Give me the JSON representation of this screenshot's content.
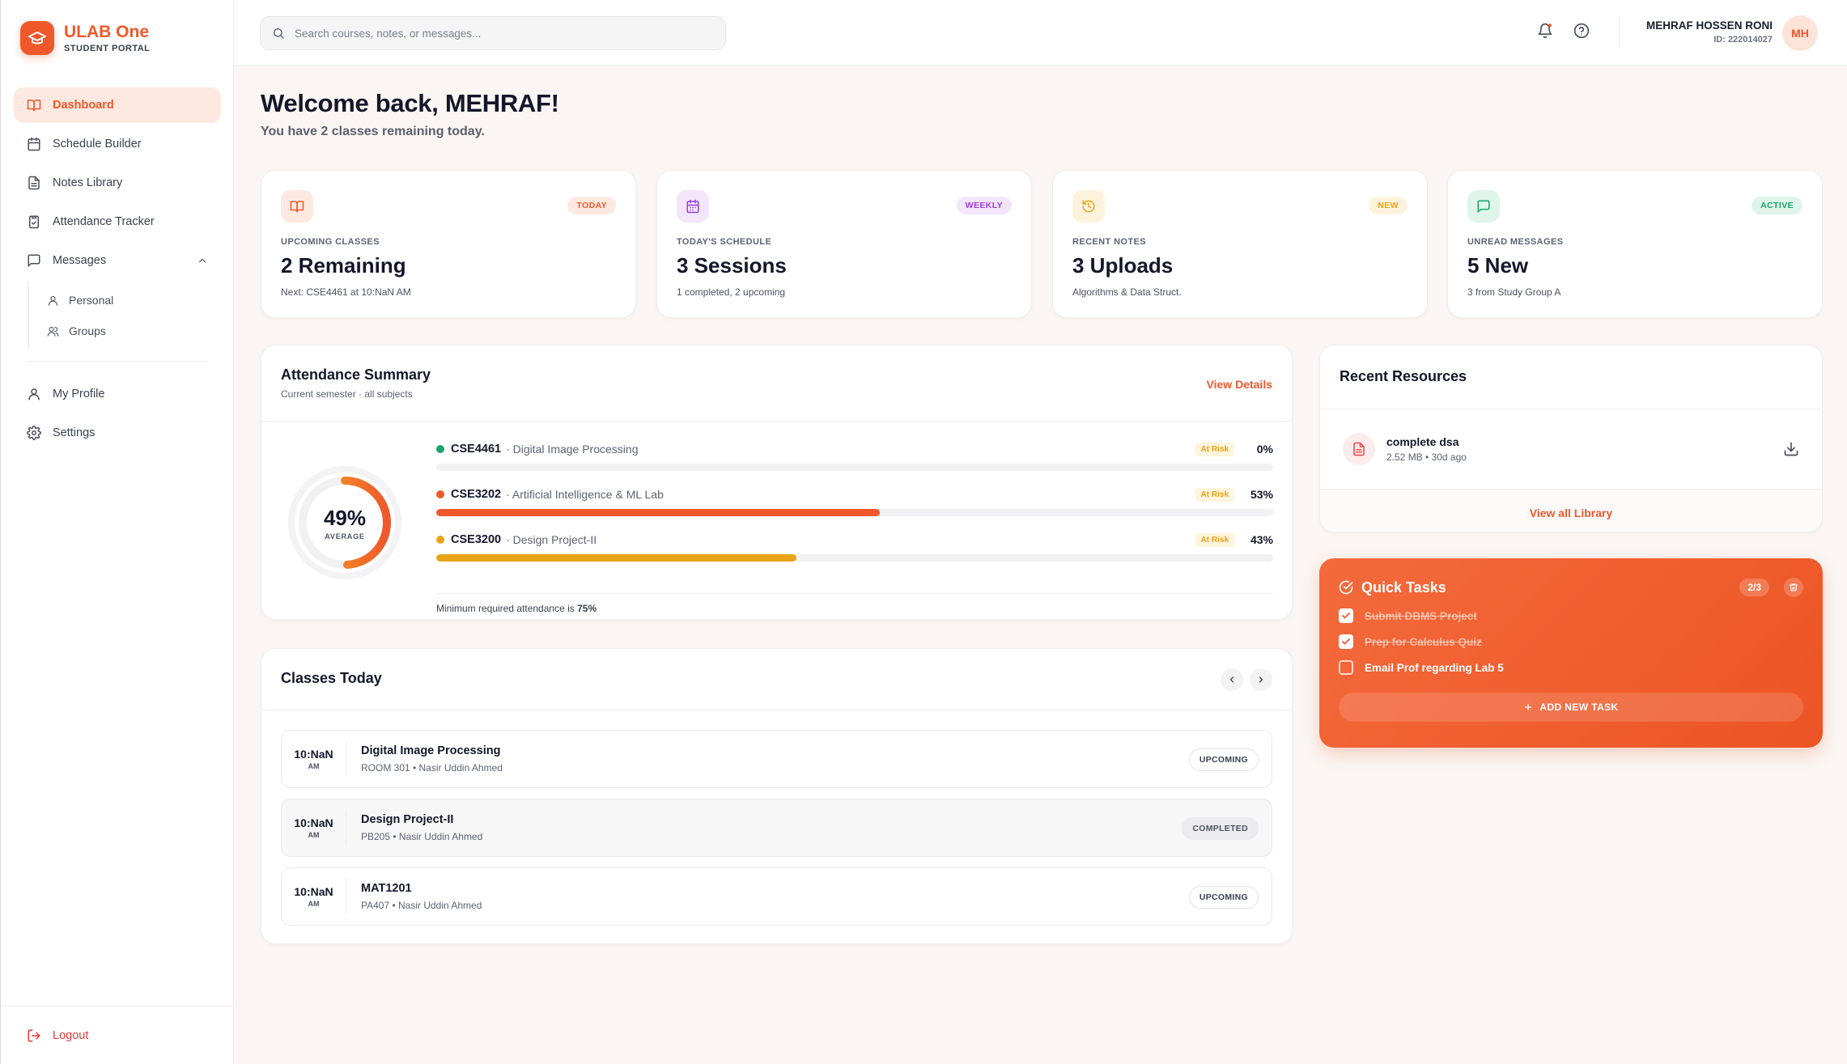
{
  "brand": {
    "name": "ULAB One",
    "subtitle": "STUDENT PORTAL"
  },
  "sidebar": {
    "items": [
      {
        "label": "Dashboard",
        "icon": "book-open-icon",
        "active": true
      },
      {
        "label": "Schedule Builder",
        "icon": "calendar-icon"
      },
      {
        "label": "Notes Library",
        "icon": "file-text-icon"
      },
      {
        "label": "Attendance Tracker",
        "icon": "clipboard-check-icon"
      },
      {
        "label": "Messages",
        "icon": "message-icon",
        "expanded": true
      }
    ],
    "messages_sub": [
      {
        "label": "Personal",
        "icon": "user-icon"
      },
      {
        "label": "Groups",
        "icon": "users-icon"
      }
    ],
    "bottom_items": [
      {
        "label": "My Profile",
        "icon": "user-icon"
      },
      {
        "label": "Settings",
        "icon": "gear-icon"
      }
    ],
    "logout_label": "Logout"
  },
  "header": {
    "search_placeholder": "Search courses, notes, or messages...",
    "user_name": "MEHRAF HOSSEN RONI",
    "user_id": "ID: 222014027",
    "avatar_initials": "MH"
  },
  "welcome": {
    "title": "Welcome back, MEHRAF!",
    "subtitle": "You have 2 classes remaining today."
  },
  "stats": [
    {
      "icon": "book-open-icon",
      "badge": "TODAY",
      "label": "UPCOMING CLASSES",
      "value": "2 Remaining",
      "sub": "Next: CSE4461 at 10:NaN AM",
      "color": "#f0582b"
    },
    {
      "icon": "calendar-icon",
      "badge": "WEEKLY",
      "label": "TODAY'S SCHEDULE",
      "value": "3 Sessions",
      "sub": "1 completed, 2 upcoming",
      "color": "#9b3fd6"
    },
    {
      "icon": "history-icon",
      "badge": "NEW",
      "label": "RECENT NOTES",
      "value": "3 Uploads",
      "sub": "Algorithms & Data Struct.",
      "color": "#e8a317"
    },
    {
      "icon": "message-icon",
      "badge": "ACTIVE",
      "label": "UNREAD MESSAGES",
      "value": "5 New",
      "sub": "3 from Study Group A",
      "color": "#1aa56a"
    }
  ],
  "attendance": {
    "title": "Attendance Summary",
    "subtitle": "Current semester · all subjects",
    "view_details": "View Details",
    "average": "49%",
    "average_fraction": 0.49,
    "average_label": "AVERAGE",
    "subjects": [
      {
        "code": "CSE4461",
        "name": "· Digital Image Processing",
        "status": "At Risk",
        "percent_label": "0%",
        "percent": 0,
        "color": "#1aa56a"
      },
      {
        "code": "CSE3202",
        "name": "· Artificial Intelligence & ML Lab",
        "status": "At Risk",
        "percent_label": "53%",
        "percent": 53,
        "color": "#f0582b"
      },
      {
        "code": "CSE3200",
        "name": "· Design Project-II",
        "status": "At Risk",
        "percent_label": "43%",
        "percent": 43,
        "color": "#e8a317"
      }
    ],
    "min_note": "Minimum required attendance is ",
    "min_value": "75%"
  },
  "classes": {
    "title": "Classes Today",
    "items": [
      {
        "time": "10:NaN",
        "ampm": "AM",
        "name": "Digital Image Processing",
        "meta": "ROOM 301 • Nasir Uddin Ahmed",
        "status": "UPCOMING"
      },
      {
        "time": "10:NaN",
        "ampm": "AM",
        "name": "Design Project-II",
        "meta": "PB205 • Nasir Uddin Ahmed",
        "status": "COMPLETED"
      },
      {
        "time": "10:NaN",
        "ampm": "AM",
        "name": "MAT1201",
        "meta": "PA407 • Nasir Uddin Ahmed",
        "status": "UPCOMING"
      }
    ]
  },
  "resources": {
    "title": "Recent Resources",
    "items": [
      {
        "name": "complete dsa",
        "meta": "2.52 MB • 30d ago"
      }
    ],
    "view_all": "View all Library"
  },
  "tasks": {
    "title": "Quick Tasks",
    "count": "2/3",
    "items": [
      {
        "text": "Submit DBMS Project",
        "done": true
      },
      {
        "text": "Prep for Calculus Quiz",
        "done": true
      },
      {
        "text": "Email Prof regarding Lab 5",
        "done": false
      }
    ],
    "add_label": "ADD NEW TASK"
  }
}
